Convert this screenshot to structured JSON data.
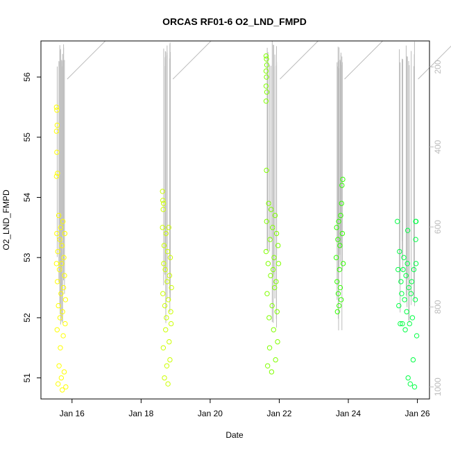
{
  "chart_data": {
    "type": "scatter",
    "title": "ORCAS RF01-6 O2_LND_FMPD",
    "xlabel": "Date",
    "ylabel": "O2_LND_FMPD",
    "x_ticks": [
      "Jan 16",
      "Jan 18",
      "Jan 20",
      "Jan 22",
      "Jan 24",
      "Jan 26"
    ],
    "x_tick_days": [
      16,
      18,
      20,
      22,
      24,
      26
    ],
    "xlim": [
      15.1,
      26.35
    ],
    "ylim": [
      50.65,
      56.6
    ],
    "y_ticks": [
      51,
      52,
      53,
      54,
      55,
      56
    ],
    "y2_ticks": [
      200,
      400,
      600,
      800,
      1000
    ],
    "y2lim": [
      1030,
      135
    ],
    "grid": false,
    "colors": {
      "rf01": "#ffff00",
      "rf02": "#ccff00",
      "rf03": "#80ff00",
      "rf04": "#33ff00",
      "rf05": "#00ff44",
      "pressure": "#bbbbbb"
    },
    "series": [
      {
        "color": "rf01",
        "x_start": 15.55,
        "x_end": 15.82,
        "values": [
          52.9,
          53.4,
          51.8,
          52.6,
          53.1,
          50.9,
          52.2,
          53.7,
          51.2,
          52.8,
          53.3,
          52.0,
          51.5,
          53.5,
          52.4,
          51.0,
          52.9,
          53.2,
          50.8,
          52.1,
          53.6,
          51.7,
          52.5,
          53.0,
          51.1,
          52.7,
          53.4,
          51.9,
          52.3,
          50.85
        ]
      },
      {
        "color": "rf01",
        "x": [
          15.55,
          15.56,
          15.57,
          15.55,
          15.56,
          15.58,
          15.55
        ],
        "values": [
          55.5,
          55.45,
          55.2,
          55.1,
          54.75,
          54.4,
          54.35
        ]
      },
      {
        "color": "rf02",
        "x_start": 18.62,
        "x_end": 18.88,
        "values": [
          53.5,
          52.4,
          51.5,
          52.9,
          53.2,
          51.0,
          52.2,
          52.8,
          51.8,
          53.4,
          52.0,
          51.2,
          52.6,
          53.1,
          50.9,
          52.3,
          53.5,
          51.6,
          52.7,
          51.3,
          53.0,
          52.1,
          51.9,
          52.5
        ]
      },
      {
        "color": "rf02",
        "x": [
          18.62,
          18.63,
          18.65,
          18.64
        ],
        "values": [
          54.1,
          53.95,
          53.9,
          53.8
        ]
      },
      {
        "color": "rf03",
        "x_start": 21.62,
        "x_end": 21.98,
        "values": [
          53.1,
          53.6,
          52.4,
          51.2,
          52.9,
          53.9,
          52.0,
          51.5,
          53.3,
          52.7,
          53.8,
          51.1,
          52.2,
          53.5,
          52.8,
          51.8,
          53.0,
          52.5,
          53.7,
          51.3,
          52.6,
          53.4,
          52.1,
          51.6,
          53.2,
          52.9
        ]
      },
      {
        "color": "rf03",
        "x": [
          21.62,
          21.63,
          21.64,
          21.62,
          21.63,
          21.62,
          21.64,
          21.62
        ],
        "values": [
          56.35,
          56.3,
          56.2,
          56.1,
          56.0,
          55.85,
          55.75,
          55.6
        ]
      },
      {
        "color": "rf03",
        "x": [
          21.63
        ],
        "values": [
          54.45
        ]
      },
      {
        "color": "rf04",
        "x_start": 23.65,
        "x_end": 23.85,
        "values": [
          53.0,
          53.5,
          52.6,
          52.1,
          53.3,
          52.4,
          53.6,
          52.2,
          52.8,
          53.2,
          52.5,
          53.7,
          52.3,
          53.9,
          54.2,
          53.4,
          54.3,
          52.9
        ]
      },
      {
        "color": "rf05",
        "x_start": 25.42,
        "x_end": 25.98,
        "values": [
          53.6,
          52.8,
          52.2,
          53.1,
          51.9,
          52.6,
          52.4,
          51.9,
          52.8,
          53.0,
          52.3,
          51.8,
          52.7,
          52.1,
          52.9,
          51.0,
          52.5,
          51.9,
          50.9,
          52.4,
          52.6,
          52.0,
          51.3,
          52.8,
          50.85,
          52.3,
          52.9,
          51.7
        ]
      },
      {
        "color": "rf05",
        "x": [
          25.72,
          25.95,
          25.96,
          25.95
        ],
        "values": [
          53.45,
          53.6,
          53.6,
          53.3
        ]
      }
    ]
  }
}
